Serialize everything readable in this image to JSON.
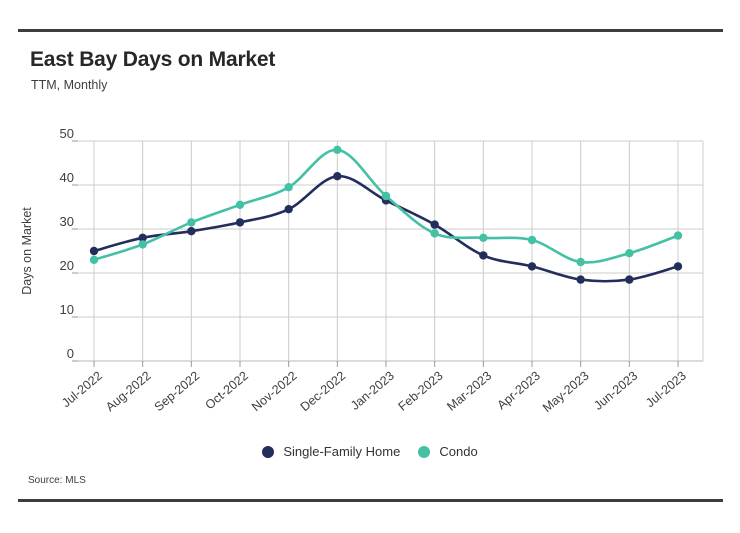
{
  "header": {
    "title": "East Bay Days on Market",
    "subtitle": "TTM, Monthly"
  },
  "footer": {
    "source": "Source: MLS"
  },
  "colors": {
    "single_family": "#232e5c",
    "condo": "#44c0a4",
    "grid": "#cccccc",
    "axis": "#b8b8b8",
    "tick": "#9a9a9a",
    "axis_text": "#3e3e3e",
    "rule": "#3d3d3d"
  },
  "chart_data": {
    "type": "line",
    "title": "East Bay Days on Market",
    "subtitle": "TTM, Monthly",
    "xlabel": "",
    "ylabel": "Days on Market",
    "ylim": [
      0,
      50
    ],
    "y_ticks": [
      0,
      10,
      20,
      30,
      40,
      50
    ],
    "grid": true,
    "legend_position": "bottom",
    "categories": [
      "Jul-2022",
      "Aug-2022",
      "Sep-2022",
      "Oct-2022",
      "Nov-2022",
      "Dec-2022",
      "Jan-2023",
      "Feb-2023",
      "Mar-2023",
      "Apr-2023",
      "May-2023",
      "Jun-2023",
      "Jul-2023"
    ],
    "series": [
      {
        "name": "Single-Family Home",
        "color": "#232e5c",
        "values": [
          25,
          28,
          29.5,
          31.5,
          34.5,
          42,
          36.5,
          31,
          24,
          21.5,
          18.5,
          18.5,
          21.5
        ]
      },
      {
        "name": "Condo",
        "color": "#44c0a4",
        "values": [
          23,
          26.5,
          31.5,
          35.5,
          39.5,
          48,
          37.5,
          29,
          28,
          27.5,
          22.5,
          24.5,
          28.5
        ]
      }
    ],
    "source": "Source: MLS"
  }
}
